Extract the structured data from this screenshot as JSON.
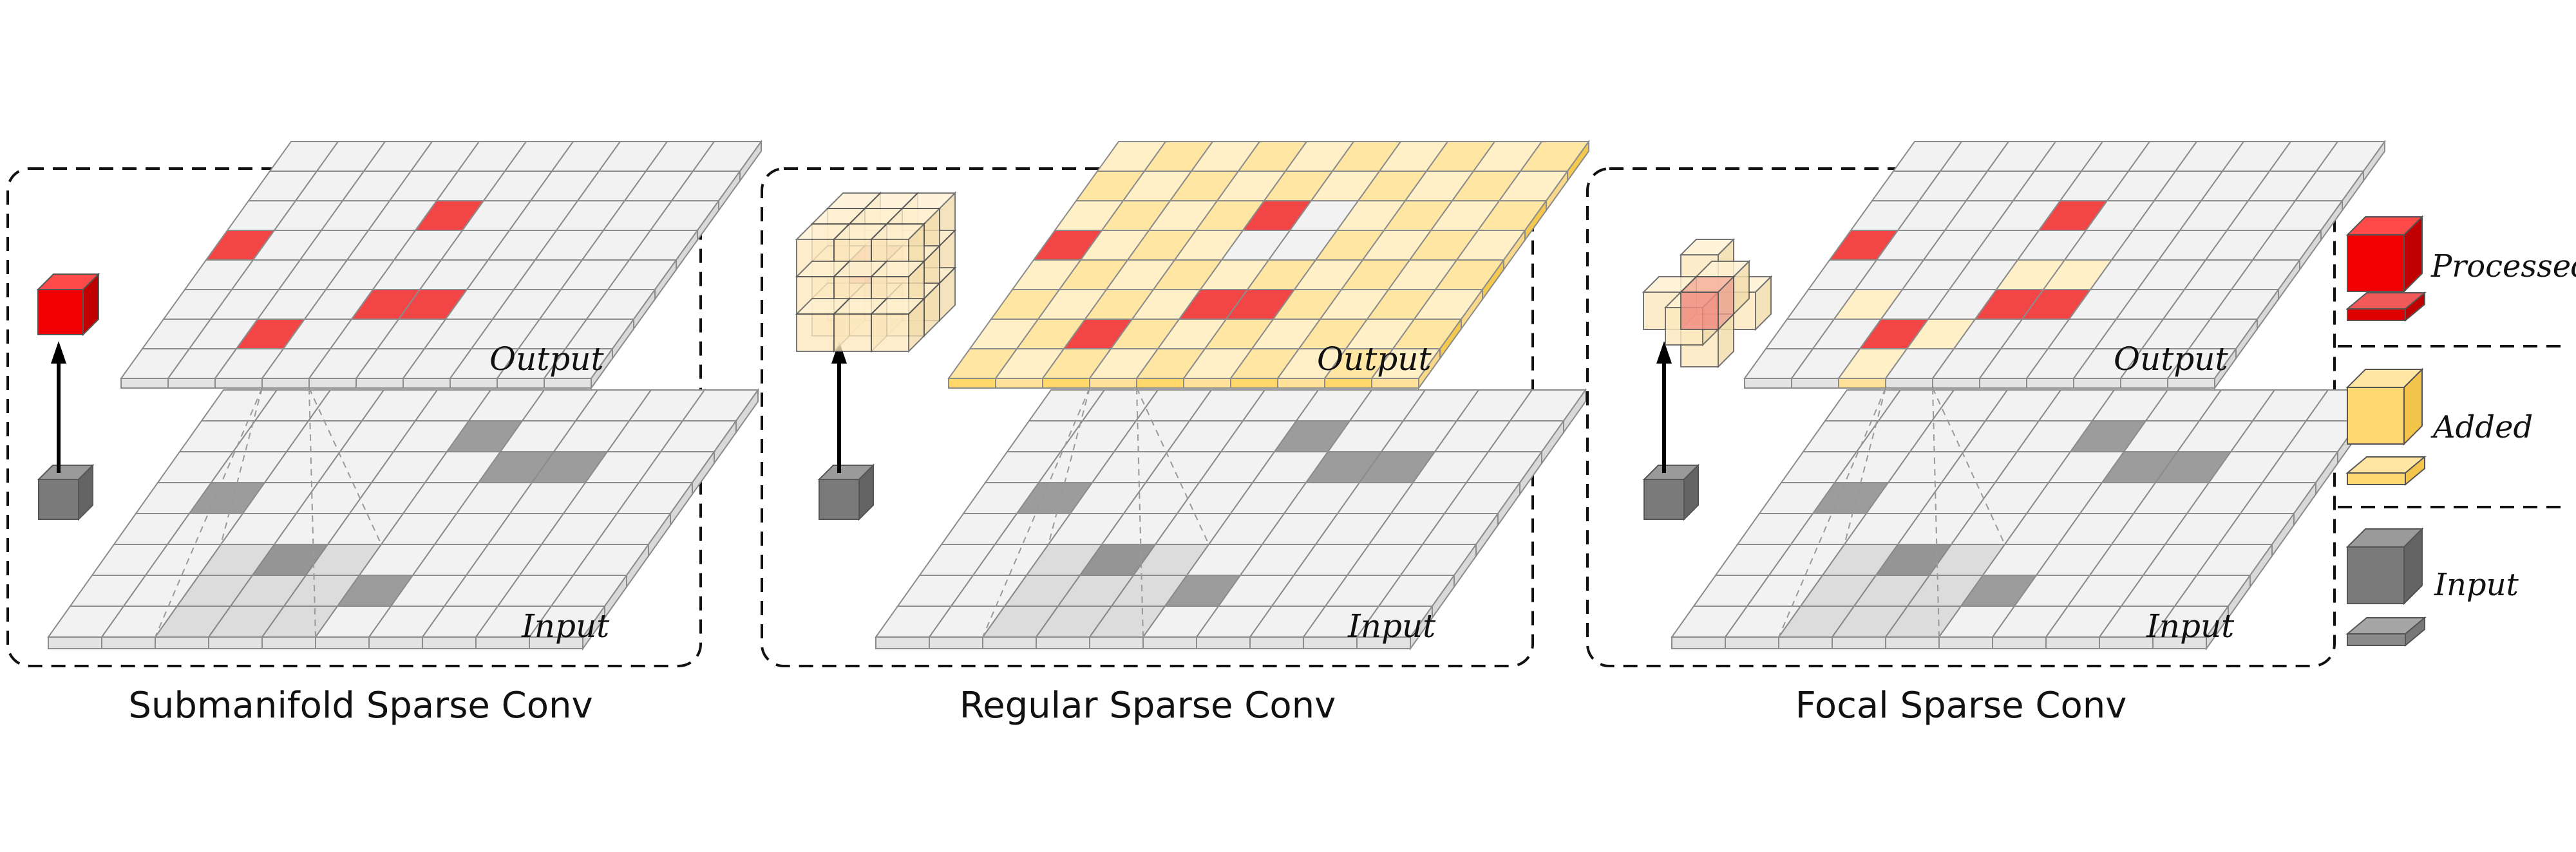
{
  "panels": [
    {
      "id": "submanifold",
      "caption": "Submanifold Sparse Conv",
      "output_label": "Output",
      "input_label": "Input",
      "kernel_icon": "red-cube",
      "input_active": [
        [
          1,
          4
        ],
        [
          3,
          2
        ],
        [
          5,
          1
        ],
        [
          5,
          6
        ],
        [
          6,
          5
        ],
        [
          7,
          5
        ]
      ],
      "output_processed": [
        [
          0,
          4
        ],
        [
          2,
          1
        ],
        [
          1,
          8
        ],
        [
          4,
          2
        ],
        [
          4,
          5
        ],
        [
          5,
          2
        ]
      ],
      "output_added": []
    },
    {
      "id": "regular",
      "caption": "Regular Sparse Conv",
      "output_label": "Output",
      "input_label": "Input",
      "kernel_icon": "3x3x3-kernel-cube",
      "input_active": [
        [
          1,
          4
        ],
        [
          3,
          2
        ],
        [
          5,
          1
        ],
        [
          5,
          6
        ],
        [
          6,
          5
        ],
        [
          7,
          5
        ]
      ],
      "output_processed": [
        [
          0,
          4
        ],
        [
          2,
          1
        ],
        [
          1,
          8
        ],
        [
          4,
          2
        ],
        [
          4,
          5
        ],
        [
          5,
          2
        ]
      ],
      "output_added": "all-others"
    },
    {
      "id": "focal",
      "caption": "Focal Sparse Conv",
      "output_label": "Output",
      "input_label": "Input",
      "kernel_icon": "cross-kernel-cube",
      "input_active": [
        [
          1,
          4
        ],
        [
          3,
          2
        ],
        [
          5,
          1
        ],
        [
          5,
          6
        ],
        [
          6,
          5
        ],
        [
          7,
          5
        ]
      ],
      "output_processed": [
        [
          0,
          4
        ],
        [
          2,
          1
        ],
        [
          1,
          8
        ],
        [
          4,
          2
        ],
        [
          4,
          5
        ],
        [
          5,
          2
        ]
      ],
      "output_added": [
        [
          1,
          2
        ],
        [
          2,
          0
        ],
        [
          3,
          1
        ],
        [
          4,
          3
        ],
        [
          5,
          3
        ]
      ]
    }
  ],
  "legend": [
    {
      "label": "Processed",
      "color": "#ee1f1f"
    },
    {
      "label": "Added",
      "color": "#ffe199"
    },
    {
      "label": "Input",
      "color": "#7d7d7d"
    }
  ]
}
